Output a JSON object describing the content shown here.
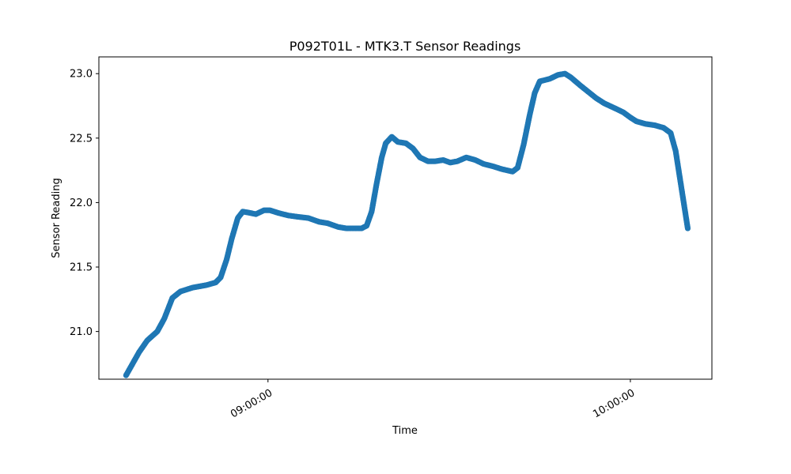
{
  "chart_data": {
    "type": "scatter",
    "title": "P092T01L - MTK3.T Sensor Readings",
    "xlabel": "Time",
    "ylabel": "Sensor Reading",
    "xlim": [
      "08:32:00",
      "10:13:30"
    ],
    "ylim": [
      20.63,
      23.13
    ],
    "x_ticks": [
      "09:00:00",
      "10:00:00"
    ],
    "y_ticks": [
      21.0,
      21.5,
      22.0,
      22.5,
      23.0
    ],
    "y_tick_labels": [
      "21.0",
      "21.5",
      "22.0",
      "22.5",
      "23.0"
    ],
    "grid": false,
    "marker_color": "#1f77b4",
    "series": [
      {
        "name": "",
        "points": [
          [
            "08:36:30",
            20.66
          ],
          [
            "08:38:40",
            20.84
          ],
          [
            "08:40:00",
            20.93
          ],
          [
            "08:41:40",
            21.0
          ],
          [
            "08:42:50",
            21.1
          ],
          [
            "08:44:10",
            21.26
          ],
          [
            "08:45:30",
            21.31
          ],
          [
            "08:47:30",
            21.34
          ],
          [
            "08:49:50",
            21.36
          ],
          [
            "08:51:20",
            21.38
          ],
          [
            "08:52:10",
            21.42
          ],
          [
            "08:53:10",
            21.56
          ],
          [
            "08:54:00",
            21.72
          ],
          [
            "08:55:00",
            21.88
          ],
          [
            "08:55:50",
            21.93
          ],
          [
            "08:57:00",
            21.92
          ],
          [
            "08:58:00",
            21.91
          ],
          [
            "08:59:20",
            21.94
          ],
          [
            "09:00:20",
            21.94
          ],
          [
            "09:01:40",
            21.92
          ],
          [
            "09:03:20",
            21.9
          ],
          [
            "09:04:50",
            21.89
          ],
          [
            "09:06:40",
            21.88
          ],
          [
            "09:08:30",
            21.85
          ],
          [
            "09:09:50",
            21.84
          ],
          [
            "09:11:40",
            21.81
          ],
          [
            "09:13:00",
            21.8
          ],
          [
            "09:14:30",
            21.8
          ],
          [
            "09:15:30",
            21.8
          ],
          [
            "09:16:20",
            21.82
          ],
          [
            "09:17:10",
            21.93
          ],
          [
            "09:18:00",
            22.15
          ],
          [
            "09:18:50",
            22.35
          ],
          [
            "09:19:30",
            22.46
          ],
          [
            "09:20:30",
            22.51
          ],
          [
            "09:21:30",
            22.47
          ],
          [
            "09:22:50",
            22.46
          ],
          [
            "09:24:00",
            22.42
          ],
          [
            "09:25:10",
            22.35
          ],
          [
            "09:26:30",
            22.32
          ],
          [
            "09:27:40",
            22.32
          ],
          [
            "09:29:00",
            22.33
          ],
          [
            "09:30:10",
            22.31
          ],
          [
            "09:31:20",
            22.32
          ],
          [
            "09:32:50",
            22.35
          ],
          [
            "09:34:20",
            22.33
          ],
          [
            "09:35:40",
            22.3
          ],
          [
            "09:37:20",
            22.28
          ],
          [
            "09:38:40",
            22.26
          ],
          [
            "09:40:30",
            22.24
          ],
          [
            "09:41:20",
            22.27
          ],
          [
            "09:42:20",
            22.45
          ],
          [
            "09:43:20",
            22.68
          ],
          [
            "09:44:10",
            22.85
          ],
          [
            "09:45:00",
            22.94
          ],
          [
            "09:46:40",
            22.96
          ],
          [
            "09:48:00",
            22.99
          ],
          [
            "09:49:10",
            23.0
          ],
          [
            "09:50:10",
            22.97
          ],
          [
            "09:51:40",
            22.91
          ],
          [
            "09:53:00",
            22.86
          ],
          [
            "09:54:20",
            22.81
          ],
          [
            "09:55:40",
            22.77
          ],
          [
            "09:57:30",
            22.73
          ],
          [
            "09:58:50",
            22.7
          ],
          [
            "10:00:00",
            22.66
          ],
          [
            "10:01:00",
            22.63
          ],
          [
            "10:02:30",
            22.61
          ],
          [
            "10:04:00",
            22.6
          ],
          [
            "10:05:30",
            22.58
          ],
          [
            "10:06:40",
            22.54
          ],
          [
            "10:07:30",
            22.4
          ],
          [
            "10:08:10",
            22.2
          ],
          [
            "10:08:50",
            22.0
          ],
          [
            "10:09:30",
            21.8
          ]
        ]
      }
    ]
  }
}
